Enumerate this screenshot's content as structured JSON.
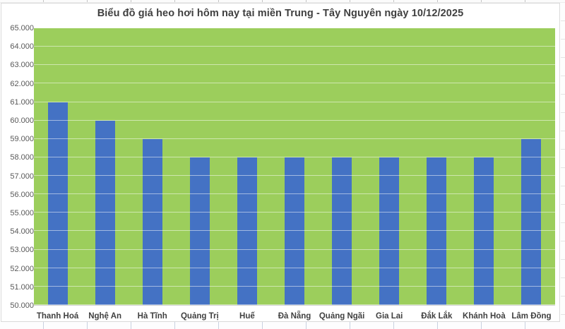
{
  "chart_data": {
    "type": "bar",
    "title": "Biểu đồ giá heo hơi hôm nay tại miền Trung - Tây Nguyên ngày 10/12/2025",
    "categories": [
      "Thanh Hoá",
      "Nghệ An",
      "Hà Tĩnh",
      "Quảng Trị",
      "Huế",
      "Đà Nẵng",
      "Quảng Ngãi",
      "Gia Lai",
      "Đắk Lắk",
      "Khánh Hoà",
      "Lâm Đồng"
    ],
    "values": [
      61000,
      60000,
      59000,
      58000,
      58000,
      58000,
      58000,
      58000,
      58000,
      58000,
      59000
    ],
    "xlabel": "",
    "ylabel": "",
    "ylim": [
      50000,
      65000
    ],
    "ytick_step": 1000,
    "ytick_labels": [
      "65.000",
      "64.000",
      "63.000",
      "62.000",
      "61.000",
      "60.000",
      "59.000",
      "58.000",
      "57.000",
      "56.000",
      "55.000",
      "54.000",
      "53.000",
      "52.000",
      "51.000",
      "50.000"
    ],
    "grid": true,
    "legend": "none",
    "colors": {
      "bar": "#4472C4",
      "plot_background": "#9CCE5C",
      "gridline": "rgba(255,255,255,0.5)",
      "title_text": "#3F3F3F",
      "axis_tick_text": "#595959",
      "category_text": "#404040"
    }
  }
}
